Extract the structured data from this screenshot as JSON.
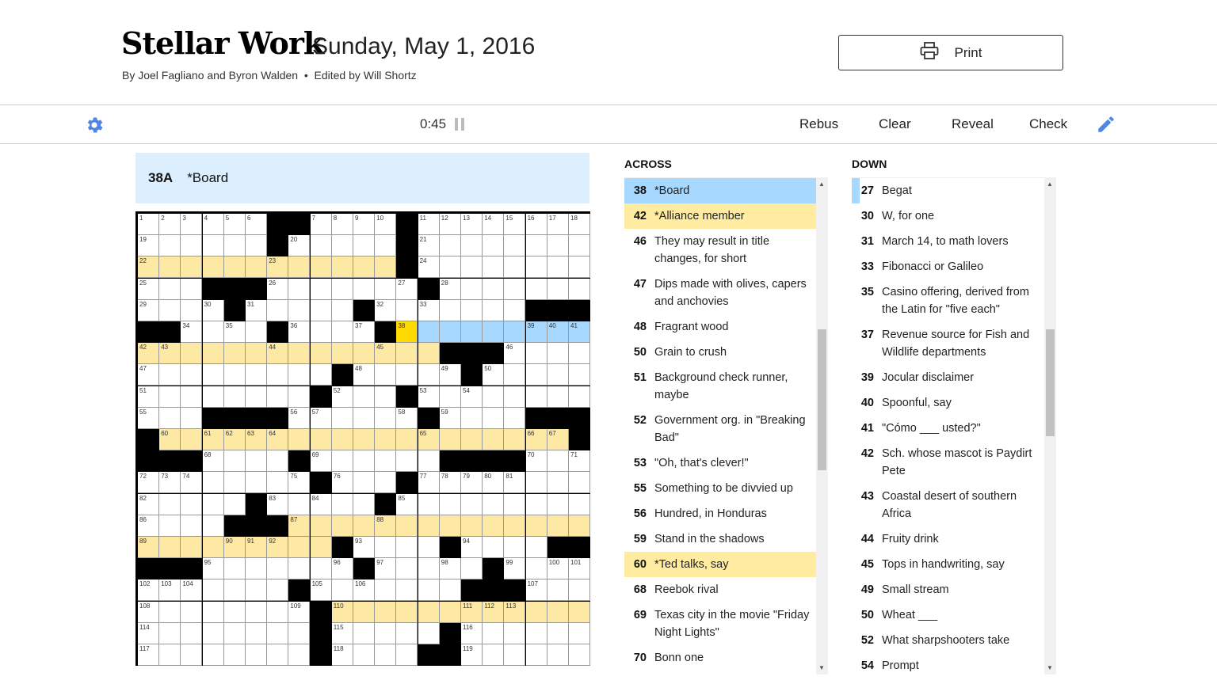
{
  "header": {
    "title": "Stellar Work",
    "date": "Sunday, May 1, 2016",
    "byline": "By Joel Fagliano and Byron Walden  •  Edited by Will Shortz",
    "print_label": "Print"
  },
  "toolbar": {
    "timer": "0:45",
    "rebus": "Rebus",
    "clear": "Clear",
    "reveal": "Reveal",
    "check": "Check",
    "icons": [
      "gear-icon",
      "pause-icon",
      "pencil-icon"
    ],
    "accent": "#4f85e5"
  },
  "current_clue": {
    "label": "38A",
    "text": "*Board"
  },
  "colors": {
    "highlight": "#fde8a4",
    "active_word": "#a7d8ff",
    "cursor": "#ffda00",
    "clue_bar": "#dcefff"
  },
  "grid": {
    "rows": [
      "......##....#........",
      "......#.....#........",
      "............#........",
      "...###.......#.......",
      "....#.....#.......###",
      "##....#....#.........",
      "..............###....",
      ".........#.....#.....",
      "........#...#........",
      "...####......#....###",
      "#...................#",
      "###....#......####...",
      "........#...#........",
      ".....#.....#.........",
      "....###..............",
      ".........#....#....##",
      "###.......#.....#....",
      ".......#.......###...",
      "........#............",
      "........#.....#......",
      "........#....##......"
    ],
    "numbers": [
      1,
      2,
      3,
      4,
      5,
      6,
      7,
      8,
      9,
      10,
      11,
      12,
      13,
      14,
      15,
      16,
      17,
      18,
      19,
      20,
      21,
      22,
      23,
      24,
      25,
      26,
      27,
      28,
      29,
      30,
      31,
      32,
      33,
      34,
      35,
      36,
      37,
      38,
      39,
      40,
      41,
      42,
      43,
      44,
      45,
      46,
      47,
      48,
      49,
      50,
      51,
      52,
      53,
      54,
      55,
      56,
      57,
      58,
      59,
      60,
      61,
      62,
      63,
      64,
      65,
      66,
      67,
      68,
      69,
      70,
      71,
      72,
      73,
      74,
      75,
      76,
      77,
      78,
      79,
      80,
      81,
      82,
      83,
      84,
      85,
      86,
      87,
      88,
      89,
      90,
      91,
      92,
      93,
      94,
      95,
      96,
      97,
      98,
      99,
      100,
      101,
      102,
      103,
      104,
      105,
      106,
      107,
      108,
      109,
      110,
      111,
      112,
      113,
      114,
      115,
      116,
      117,
      118,
      119
    ],
    "highlighted_words": [
      {
        "row": 2,
        "from": 0,
        "to": 11,
        "style": "highlight"
      },
      {
        "row": 6,
        "from": 0,
        "to": 13,
        "style": "highlight"
      },
      {
        "row": 10,
        "from": 1,
        "to": 19,
        "style": "highlight"
      },
      {
        "row": 14,
        "from": 7,
        "to": 20,
        "style": "highlight"
      },
      {
        "row": 15,
        "from": 0,
        "to": 8,
        "style": "highlight"
      },
      {
        "row": 18,
        "from": 9,
        "to": 20,
        "style": "highlight"
      },
      {
        "row": 5,
        "from": 12,
        "to": 20,
        "style": "active"
      }
    ],
    "cursor": {
      "row": 5,
      "col": 12
    }
  },
  "across": {
    "heading": "ACROSS",
    "clues": [
      {
        "num": "38",
        "text": "*Board",
        "state": "blue"
      },
      {
        "num": "42",
        "text": "*Alliance member",
        "state": "yel"
      },
      {
        "num": "46",
        "text": "They may result in title changes, for short"
      },
      {
        "num": "47",
        "text": "Dips made with olives, capers and anchovies"
      },
      {
        "num": "48",
        "text": "Fragrant wood"
      },
      {
        "num": "50",
        "text": "Grain to crush"
      },
      {
        "num": "51",
        "text": "Background check runner, maybe"
      },
      {
        "num": "52",
        "text": "Government org. in \"Breaking Bad\""
      },
      {
        "num": "53",
        "text": "\"Oh, that's clever!\""
      },
      {
        "num": "55",
        "text": "Something to be divvied up"
      },
      {
        "num": "56",
        "text": "Hundred, in Honduras"
      },
      {
        "num": "59",
        "text": "Stand in the shadows"
      },
      {
        "num": "60",
        "text": "*Ted talks, say",
        "state": "yel"
      },
      {
        "num": "68",
        "text": "Reebok rival"
      },
      {
        "num": "69",
        "text": "Texas city in the movie \"Friday Night Lights\""
      },
      {
        "num": "70",
        "text": "Bonn one"
      }
    ]
  },
  "down": {
    "heading": "DOWN",
    "clues": [
      {
        "num": "27",
        "text": "Begat",
        "state": "mark"
      },
      {
        "num": "30",
        "text": "W, for one"
      },
      {
        "num": "31",
        "text": "March 14, to math lovers"
      },
      {
        "num": "33",
        "text": "Fibonacci or Galileo"
      },
      {
        "num": "35",
        "text": "Casino offering, derived from the Latin for \"five each\""
      },
      {
        "num": "37",
        "text": "Revenue source for Fish and Wildlife departments"
      },
      {
        "num": "39",
        "text": "Jocular disclaimer"
      },
      {
        "num": "40",
        "text": "Spoonful, say"
      },
      {
        "num": "41",
        "text": "\"Cómo ___ usted?\""
      },
      {
        "num": "42",
        "text": "Sch. whose mascot is Paydirt Pete"
      },
      {
        "num": "43",
        "text": "Coastal desert of southern Africa"
      },
      {
        "num": "44",
        "text": "Fruity drink"
      },
      {
        "num": "45",
        "text": "Tops in handwriting, say"
      },
      {
        "num": "49",
        "text": "Small stream"
      },
      {
        "num": "50",
        "text": "Wheat ___"
      },
      {
        "num": "52",
        "text": "What sharpshooters take"
      },
      {
        "num": "54",
        "text": "Prompt"
      }
    ]
  }
}
